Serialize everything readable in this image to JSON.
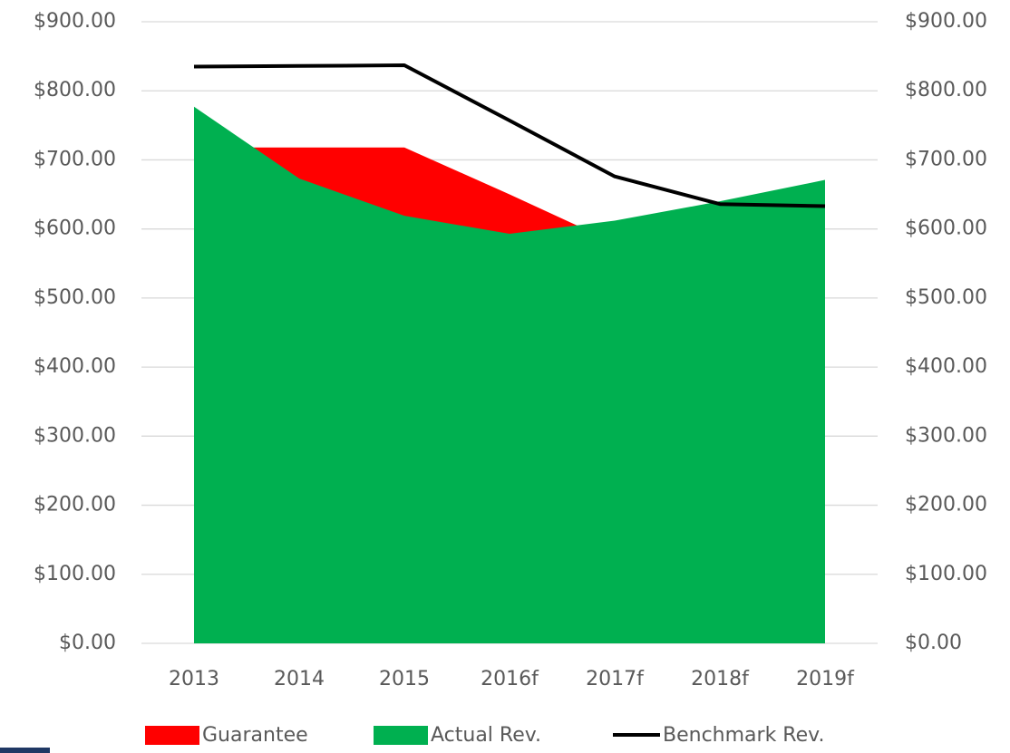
{
  "chart_data": {
    "type": "area",
    "categories": [
      "2013",
      "2014",
      "2015",
      "2016f",
      "2017f",
      "2018f",
      "2019f"
    ],
    "series": [
      {
        "name": "Guarantee",
        "type": "area",
        "color": "#ff0000",
        "values": [
          718,
          718,
          718,
          650,
          580,
          510,
          440
        ]
      },
      {
        "name": "Actual Rev.",
        "type": "area",
        "color": "#00b050",
        "values": [
          777,
          673,
          619,
          593,
          612,
          640,
          671
        ]
      },
      {
        "name": "Benchmark Rev.",
        "type": "line",
        "color": "#000000",
        "values": [
          835,
          836,
          837,
          757,
          676,
          636,
          633
        ]
      }
    ],
    "ylim": [
      0,
      900
    ],
    "yticks": [
      {
        "value": 0,
        "label": "$0.00"
      },
      {
        "value": 100,
        "label": "$100.00"
      },
      {
        "value": 200,
        "label": "$200.00"
      },
      {
        "value": 300,
        "label": "$300.00"
      },
      {
        "value": 400,
        "label": "$400.00"
      },
      {
        "value": 500,
        "label": "$500.00"
      },
      {
        "value": 600,
        "label": "$600.00"
      },
      {
        "value": 700,
        "label": "$700.00"
      },
      {
        "value": 800,
        "label": "$800.00"
      },
      {
        "value": 900,
        "label": "$900.00"
      }
    ],
    "y2lim": [
      0,
      900
    ],
    "y2ticks": [
      {
        "value": 0,
        "label": "$0.00"
      },
      {
        "value": 100,
        "label": "$100.00"
      },
      {
        "value": 200,
        "label": "$200.00"
      },
      {
        "value": 300,
        "label": "$300.00"
      },
      {
        "value": 400,
        "label": "$400.00"
      },
      {
        "value": 500,
        "label": "$500.00"
      },
      {
        "value": 600,
        "label": "$600.00"
      },
      {
        "value": 700,
        "label": "$700.00"
      },
      {
        "value": 800,
        "label": "$800.00"
      },
      {
        "value": 900,
        "label": "$900.00"
      }
    ],
    "grid": true,
    "legend": "bottom"
  }
}
